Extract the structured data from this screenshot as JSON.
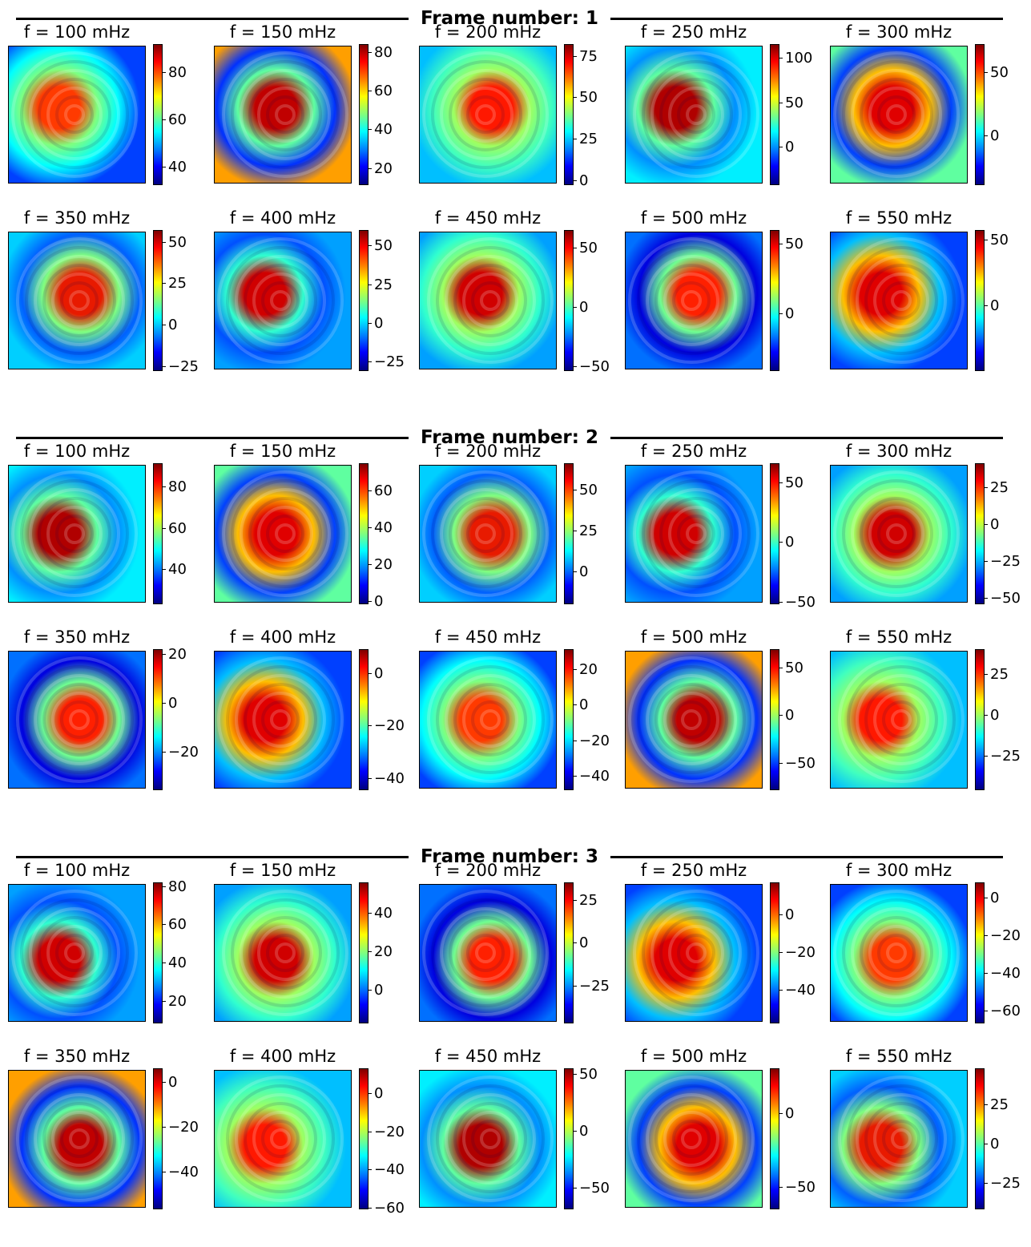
{
  "chart_data": {
    "type": "heatmap",
    "colormap": "jet",
    "colormap_colors": [
      "#00007f",
      "#0000ff",
      "#007fff",
      "#00ffff",
      "#7fff7f",
      "#ffff00",
      "#ff7f00",
      "#ff0000",
      "#7f0000"
    ],
    "frames": [
      {
        "title": "Frame number: 1",
        "panels": [
          {
            "title": "f = 100 mHz",
            "ticks": [
              "40",
              "60",
              "80"
            ],
            "tick_values": [
              40,
              60,
              80
            ],
            "range": [
              33,
              92
            ]
          },
          {
            "title": "f = 150 mHz",
            "ticks": [
              "20",
              "40",
              "60",
              "80"
            ],
            "tick_values": [
              20,
              40,
              60,
              80
            ],
            "range": [
              12,
              84
            ]
          },
          {
            "title": "f = 200 mHz",
            "ticks": [
              "0",
              "25",
              "50",
              "75"
            ],
            "tick_values": [
              0,
              25,
              50,
              75
            ],
            "range": [
              -2,
              82
            ]
          },
          {
            "title": "f = 250 mHz",
            "ticks": [
              "0",
              "50",
              "100"
            ],
            "tick_values": [
              0,
              50,
              100
            ],
            "range": [
              -41,
              115
            ]
          },
          {
            "title": "f = 300 mHz",
            "ticks": [
              "0",
              "50"
            ],
            "tick_values": [
              0,
              50
            ],
            "range": [
              -38,
              72
            ]
          },
          {
            "title": "f = 350 mHz",
            "ticks": [
              "−25",
              "0",
              "25",
              "50"
            ],
            "tick_values": [
              -25,
              0,
              25,
              50
            ],
            "range": [
              -27,
              57
            ]
          },
          {
            "title": "f = 400 mHz",
            "ticks": [
              "−25",
              "0",
              "25",
              "50"
            ],
            "tick_values": [
              -25,
              0,
              25,
              50
            ],
            "range": [
              -30,
              60
            ]
          },
          {
            "title": "f = 450 mHz",
            "ticks": [
              "−50",
              "0",
              "50"
            ],
            "tick_values": [
              -50,
              0,
              50
            ],
            "range": [
              -53,
              65
            ]
          },
          {
            "title": "f = 500 mHz",
            "ticks": [
              "0",
              "50"
            ],
            "tick_values": [
              0,
              50
            ],
            "range": [
              -40,
              60
            ]
          },
          {
            "title": "f = 550 mHz",
            "ticks": [
              "0",
              "50"
            ],
            "tick_values": [
              0,
              50
            ],
            "range": [
              -49,
              57
            ]
          }
        ]
      },
      {
        "title": "Frame number: 2",
        "panels": [
          {
            "title": "f = 100 mHz",
            "ticks": [
              "40",
              "60",
              "80"
            ],
            "tick_values": [
              40,
              60,
              80
            ],
            "range": [
              24,
              91
            ]
          },
          {
            "title": "f = 150 mHz",
            "ticks": [
              "0",
              "20",
              "40",
              "60"
            ],
            "tick_values": [
              0,
              20,
              40,
              60
            ],
            "range": [
              -1,
              75
            ]
          },
          {
            "title": "f = 200 mHz",
            "ticks": [
              "0",
              "25",
              "50"
            ],
            "tick_values": [
              0,
              25,
              50
            ],
            "range": [
              -19,
              66
            ]
          },
          {
            "title": "f = 250 mHz",
            "ticks": [
              "−50",
              "0",
              "50"
            ],
            "tick_values": [
              -50,
              0,
              50
            ],
            "range": [
              -51,
              66
            ]
          },
          {
            "title": "f = 300 mHz",
            "ticks": [
              "−50",
              "−25",
              "0",
              "25"
            ],
            "tick_values": [
              -50,
              -25,
              0,
              25
            ],
            "range": [
              -53,
              41
            ]
          },
          {
            "title": "f = 350 mHz",
            "ticks": [
              "−20",
              "0",
              "20"
            ],
            "tick_values": [
              -20,
              0,
              20
            ],
            "range": [
              -35,
              22
            ]
          },
          {
            "title": "f = 400 mHz",
            "ticks": [
              "−40",
              "−20",
              "0"
            ],
            "tick_values": [
              -40,
              -20,
              0
            ],
            "range": [
              -44,
              9
            ]
          },
          {
            "title": "f = 450 mHz",
            "ticks": [
              "−40",
              "−20",
              "0",
              "20"
            ],
            "tick_values": [
              -40,
              -20,
              0,
              20
            ],
            "range": [
              -47,
              31
            ]
          },
          {
            "title": "f = 500 mHz",
            "ticks": [
              "−50",
              "0",
              "50"
            ],
            "tick_values": [
              -50,
              0,
              50
            ],
            "range": [
              -77,
              69
            ]
          },
          {
            "title": "f = 550 mHz",
            "ticks": [
              "−25",
              "0",
              "25"
            ],
            "tick_values": [
              -25,
              0,
              25
            ],
            "range": [
              -45,
              40
            ]
          }
        ]
      },
      {
        "title": "Frame number: 3",
        "panels": [
          {
            "title": "f = 100 mHz",
            "ticks": [
              "20",
              "40",
              "60",
              "80"
            ],
            "tick_values": [
              20,
              40,
              60,
              80
            ],
            "range": [
              9,
              82
            ]
          },
          {
            "title": "f = 150 mHz",
            "ticks": [
              "0",
              "20",
              "40"
            ],
            "tick_values": [
              0,
              20,
              40
            ],
            "range": [
              -17,
              56
            ]
          },
          {
            "title": "f = 200 mHz",
            "ticks": [
              "−25",
              "0",
              "25"
            ],
            "tick_values": [
              -25,
              0,
              25
            ],
            "range": [
              -46,
              35
            ]
          },
          {
            "title": "f = 250 mHz",
            "ticks": [
              "−40",
              "−20",
              "0"
            ],
            "tick_values": [
              -40,
              -20,
              0
            ],
            "range": [
              -57,
              17
            ]
          },
          {
            "title": "f = 300 mHz",
            "ticks": [
              "−60",
              "−40",
              "−20",
              "0"
            ],
            "tick_values": [
              -60,
              -40,
              -20,
              0
            ],
            "range": [
              -66,
              8
            ]
          },
          {
            "title": "f = 350 mHz",
            "ticks": [
              "−40",
              "−20",
              "0"
            ],
            "tick_values": [
              -40,
              -20,
              0
            ],
            "range": [
              -56,
              6
            ]
          },
          {
            "title": "f = 400 mHz",
            "ticks": [
              "−60",
              "−40",
              "−20",
              "0"
            ],
            "tick_values": [
              -60,
              -40,
              -20,
              0
            ],
            "range": [
              -60,
              13
            ]
          },
          {
            "title": "f = 450 mHz",
            "ticks": [
              "−50",
              "0",
              "50"
            ],
            "tick_values": [
              -50,
              0,
              50
            ],
            "range": [
              -68,
              55
            ]
          },
          {
            "title": "f = 500 mHz",
            "ticks": [
              "−50",
              "0"
            ],
            "tick_values": [
              -50,
              0
            ],
            "range": [
              -64,
              30
            ]
          },
          {
            "title": "f = 550 mHz",
            "ticks": [
              "−25",
              "0",
              "25"
            ],
            "tick_values": [
              -25,
              0,
              25
            ],
            "range": [
              -41,
              48
            ]
          }
        ]
      }
    ]
  }
}
